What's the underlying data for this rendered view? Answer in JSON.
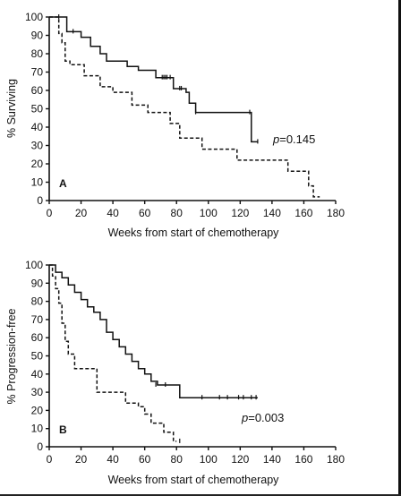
{
  "colors": {
    "background": "#ffffff",
    "ink": "#111111"
  },
  "chart_data": [
    {
      "type": "line",
      "panel": "A",
      "xlabel": "Weeks from start of chemotherapy",
      "ylabel": "% Surviving",
      "xlim": [
        0,
        180
      ],
      "ylim": [
        0,
        100
      ],
      "x_ticks": [
        "0",
        "20",
        "40",
        "60",
        "80",
        "100",
        "120",
        "140",
        "160",
        "180"
      ],
      "y_ticks": [
        "0",
        "10",
        "20",
        "30",
        "40",
        "50",
        "60",
        "70",
        "80",
        "90",
        "100"
      ],
      "grid": false,
      "p_value": {
        "label": "p",
        "text": "=0.145"
      },
      "series": [
        {
          "style": "solid",
          "step": [
            [
              0,
              100
            ],
            [
              11,
              100
            ],
            [
              11,
              92
            ],
            [
              20,
              92
            ],
            [
              20,
              89
            ],
            [
              26,
              89
            ],
            [
              26,
              84
            ],
            [
              32,
              84
            ],
            [
              32,
              80
            ],
            [
              36,
              80
            ],
            [
              36,
              76
            ],
            [
              49,
              76
            ],
            [
              49,
              73
            ],
            [
              56,
              73
            ],
            [
              56,
              71
            ],
            [
              67,
              71
            ],
            [
              67,
              67
            ],
            [
              78,
              67
            ],
            [
              78,
              61
            ],
            [
              86,
              61
            ],
            [
              86,
              59
            ],
            [
              88,
              59
            ],
            [
              88,
              53
            ],
            [
              92,
              53
            ],
            [
              92,
              48
            ],
            [
              127,
              48
            ],
            [
              127,
              32
            ],
            [
              131,
              32
            ]
          ],
          "censored": [
            [
              6,
              100
            ],
            [
              15,
              92
            ],
            [
              71,
              67
            ],
            [
              72,
              67
            ],
            [
              73,
              67
            ],
            [
              74,
              67
            ],
            [
              76,
              67
            ],
            [
              82,
              61
            ],
            [
              83,
              61
            ],
            [
              92,
              48
            ],
            [
              126,
              48
            ],
            [
              131,
              32
            ]
          ]
        },
        {
          "style": "dashed",
          "step": [
            [
              0,
              100
            ],
            [
              6,
              100
            ],
            [
              6,
              91
            ],
            [
              8,
              91
            ],
            [
              8,
              86
            ],
            [
              10,
              86
            ],
            [
              10,
              76
            ],
            [
              13,
              76
            ],
            [
              13,
              74
            ],
            [
              22,
              74
            ],
            [
              22,
              68
            ],
            [
              32,
              68
            ],
            [
              32,
              62
            ],
            [
              40,
              62
            ],
            [
              40,
              59
            ],
            [
              52,
              59
            ],
            [
              52,
              52
            ],
            [
              62,
              52
            ],
            [
              62,
              48
            ],
            [
              76,
              48
            ],
            [
              76,
              42
            ],
            [
              82,
              42
            ],
            [
              82,
              34
            ],
            [
              96,
              34
            ],
            [
              96,
              28
            ],
            [
              118,
              28
            ],
            [
              118,
              22
            ],
            [
              150,
              22
            ],
            [
              150,
              16
            ],
            [
              163,
              16
            ],
            [
              163,
              8
            ],
            [
              166,
              8
            ],
            [
              166,
              2
            ],
            [
              170,
              2
            ]
          ],
          "censored": []
        }
      ]
    },
    {
      "type": "line",
      "panel": "B",
      "xlabel": "Weeks from start of chemotherapy",
      "ylabel": "% Progression-free",
      "xlim": [
        0,
        180
      ],
      "ylim": [
        0,
        100
      ],
      "x_ticks": [
        "0",
        "20",
        "40",
        "60",
        "80",
        "100",
        "120",
        "140",
        "160",
        "180"
      ],
      "y_ticks": [
        "0",
        "10",
        "20",
        "30",
        "40",
        "50",
        "60",
        "70",
        "80",
        "90",
        "100"
      ],
      "grid": false,
      "p_value": {
        "label": "p",
        "text": "=0.003"
      },
      "series": [
        {
          "style": "solid",
          "step": [
            [
              0,
              100
            ],
            [
              4,
              100
            ],
            [
              4,
              96
            ],
            [
              8,
              96
            ],
            [
              8,
              93
            ],
            [
              12,
              93
            ],
            [
              12,
              89
            ],
            [
              16,
              89
            ],
            [
              16,
              85
            ],
            [
              20,
              85
            ],
            [
              20,
              81
            ],
            [
              24,
              81
            ],
            [
              24,
              77
            ],
            [
              28,
              77
            ],
            [
              28,
              74
            ],
            [
              32,
              74
            ],
            [
              32,
              70
            ],
            [
              36,
              70
            ],
            [
              36,
              63
            ],
            [
              40,
              63
            ],
            [
              40,
              59
            ],
            [
              44,
              59
            ],
            [
              44,
              55
            ],
            [
              48,
              55
            ],
            [
              48,
              51
            ],
            [
              52,
              51
            ],
            [
              52,
              47
            ],
            [
              56,
              47
            ],
            [
              56,
              43
            ],
            [
              60,
              43
            ],
            [
              60,
              40
            ],
            [
              64,
              40
            ],
            [
              64,
              36
            ],
            [
              68,
              36
            ],
            [
              68,
              34
            ],
            [
              82,
              34
            ],
            [
              82,
              27
            ],
            [
              131,
              27
            ]
          ],
          "censored": [
            [
              67,
              34
            ],
            [
              73,
              34
            ],
            [
              96,
              27
            ],
            [
              107,
              27
            ],
            [
              112,
              27
            ],
            [
              119,
              27
            ],
            [
              122,
              27
            ],
            [
              127,
              27
            ],
            [
              130,
              27
            ]
          ]
        },
        {
          "style": "dashed",
          "step": [
            [
              0,
              100
            ],
            [
              2,
              100
            ],
            [
              2,
              94
            ],
            [
              4,
              94
            ],
            [
              4,
              87
            ],
            [
              6,
              87
            ],
            [
              6,
              79
            ],
            [
              8,
              79
            ],
            [
              8,
              68
            ],
            [
              10,
              68
            ],
            [
              10,
              58
            ],
            [
              12,
              58
            ],
            [
              12,
              51
            ],
            [
              16,
              51
            ],
            [
              16,
              43
            ],
            [
              30,
              43
            ],
            [
              30,
              30
            ],
            [
              48,
              30
            ],
            [
              48,
              24
            ],
            [
              56,
              24
            ],
            [
              56,
              22
            ],
            [
              60,
              22
            ],
            [
              60,
              18
            ],
            [
              64,
              18
            ],
            [
              64,
              13
            ],
            [
              72,
              13
            ],
            [
              72,
              8
            ],
            [
              78,
              8
            ],
            [
              78,
              3
            ],
            [
              80,
              3
            ]
          ],
          "censored": [
            [
              82,
              3
            ]
          ]
        }
      ]
    }
  ]
}
